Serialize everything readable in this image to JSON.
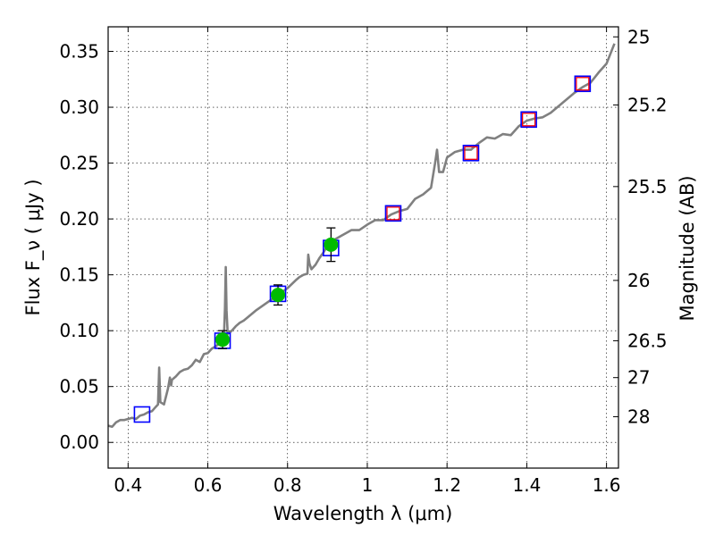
{
  "chart_data": {
    "type": "scatter",
    "xlabel": "Wavelength  λ (μm)",
    "ylabel": "Flux  F_ν  ( μJy )",
    "ylabel_right": "Magnitude (AB)",
    "xlim": [
      0.35,
      1.63
    ],
    "ylim": [
      -0.023,
      0.372
    ],
    "grid": true,
    "x_ticks": [
      0.4,
      0.6,
      0.8,
      1.0,
      1.2,
      1.4,
      1.6
    ],
    "x_tick_labels": [
      "0.4",
      "0.6",
      "0.8",
      "1",
      "1.2",
      "1.4",
      "1.6"
    ],
    "y_ticks": [
      0.0,
      0.05,
      0.1,
      0.15,
      0.2,
      0.25,
      0.3,
      0.35
    ],
    "y_tick_labels": [
      "0.00",
      "0.05",
      "0.10",
      "0.15",
      "0.20",
      "0.25",
      "0.30",
      "0.35"
    ],
    "right_ticks": [
      {
        "label": "25",
        "flux": 0.363
      },
      {
        "label": "25.2",
        "flux": 0.302
      },
      {
        "label": "25.5",
        "flux": 0.229
      },
      {
        "label": "26",
        "flux": 0.145
      },
      {
        "label": "26.5",
        "flux": 0.091
      },
      {
        "label": "27",
        "flux": 0.058
      },
      {
        "label": "28",
        "flux": 0.023
      }
    ],
    "series": [
      {
        "kind": "line",
        "color": "#808080",
        "x": [
          0.35,
          0.36,
          0.37,
          0.38,
          0.39,
          0.4,
          0.41,
          0.42,
          0.43,
          0.44,
          0.45,
          0.46,
          0.47,
          0.475,
          0.478,
          0.481,
          0.49,
          0.5,
          0.505,
          0.508,
          0.51,
          0.52,
          0.53,
          0.54,
          0.55,
          0.56,
          0.57,
          0.58,
          0.59,
          0.6,
          0.61,
          0.62,
          0.63,
          0.64,
          0.643,
          0.645,
          0.647,
          0.65,
          0.66,
          0.67,
          0.68,
          0.69,
          0.7,
          0.72,
          0.74,
          0.76,
          0.78,
          0.8,
          0.82,
          0.83,
          0.84,
          0.85,
          0.852,
          0.855,
          0.86,
          0.87,
          0.88,
          0.89,
          0.9,
          0.92,
          0.94,
          0.96,
          0.98,
          1.0,
          1.02,
          1.04,
          1.06,
          1.08,
          1.1,
          1.12,
          1.14,
          1.16,
          1.17,
          1.175,
          1.18,
          1.19,
          1.2,
          1.22,
          1.24,
          1.26,
          1.28,
          1.3,
          1.32,
          1.34,
          1.36,
          1.38,
          1.4,
          1.42,
          1.44,
          1.46,
          1.48,
          1.5,
          1.52,
          1.54,
          1.56,
          1.58,
          1.6,
          1.62
        ],
        "y": [
          0.015,
          0.014,
          0.018,
          0.02,
          0.02,
          0.021,
          0.022,
          0.021,
          0.024,
          0.025,
          0.027,
          0.028,
          0.032,
          0.034,
          0.067,
          0.036,
          0.034,
          0.048,
          0.058,
          0.051,
          0.056,
          0.059,
          0.063,
          0.065,
          0.066,
          0.069,
          0.074,
          0.072,
          0.079,
          0.08,
          0.084,
          0.086,
          0.089,
          0.091,
          0.12,
          0.157,
          0.118,
          0.097,
          0.1,
          0.104,
          0.107,
          0.109,
          0.112,
          0.118,
          0.123,
          0.128,
          0.133,
          0.138,
          0.145,
          0.148,
          0.15,
          0.151,
          0.168,
          0.16,
          0.155,
          0.159,
          0.165,
          0.17,
          0.176,
          0.182,
          0.186,
          0.19,
          0.19,
          0.195,
          0.199,
          0.199,
          0.204,
          0.207,
          0.209,
          0.218,
          0.222,
          0.228,
          0.25,
          0.262,
          0.242,
          0.242,
          0.255,
          0.26,
          0.262,
          0.262,
          0.268,
          0.273,
          0.272,
          0.276,
          0.275,
          0.283,
          0.288,
          0.29,
          0.291,
          0.295,
          0.301,
          0.307,
          0.313,
          0.318,
          0.322,
          0.331,
          0.339,
          0.357
        ]
      },
      {
        "kind": "model_photometry",
        "marker": "open-square",
        "color": "#0000ff",
        "x": [
          0.435,
          0.637,
          0.776,
          0.909,
          1.065,
          1.26,
          1.405,
          1.54
        ],
        "y": [
          0.025,
          0.091,
          0.133,
          0.174,
          0.205,
          0.259,
          0.289,
          0.321
        ]
      },
      {
        "kind": "observed",
        "marker": "filled-circle",
        "color": "#00bb00",
        "x": [
          0.637,
          0.776,
          0.909
        ],
        "y": [
          0.092,
          0.132,
          0.177
        ],
        "yerr": [
          0.008,
          0.009,
          0.015
        ]
      },
      {
        "kind": "upper_limits",
        "marker": "open-square",
        "color": "#ff0000",
        "x": [
          1.065,
          1.26,
          1.405,
          1.54
        ],
        "y": [
          0.205,
          0.259,
          0.289,
          0.321
        ]
      }
    ]
  }
}
